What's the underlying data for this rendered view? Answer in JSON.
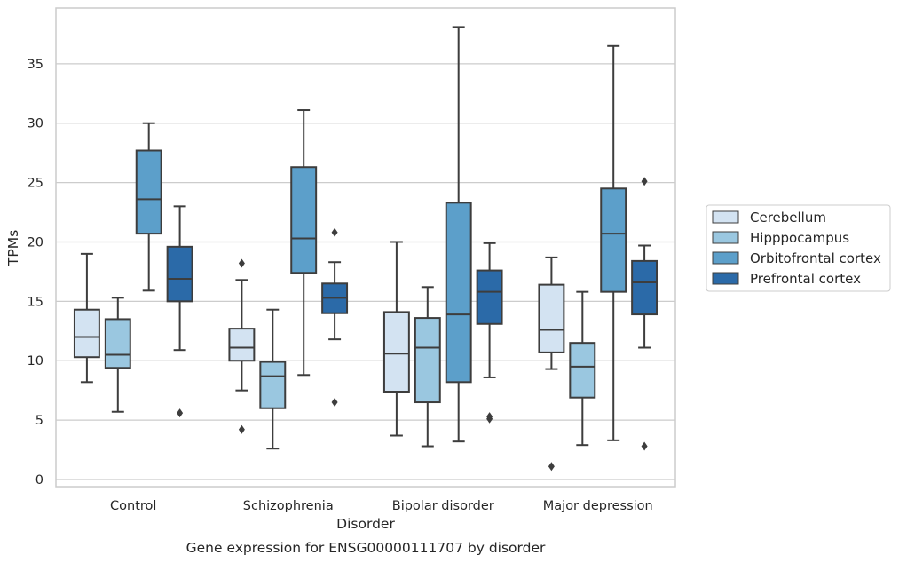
{
  "caption": "Gene expression for ENSG00000111707 by disorder",
  "chart_data": {
    "type": "box",
    "xlabel": "Disorder",
    "ylabel": "TPMs",
    "categories": [
      "Control",
      "Schizophrenia",
      "Bipolar disorder",
      "Major depression"
    ],
    "ylim": [
      -0.6,
      39.7
    ],
    "yticks": [
      0,
      5,
      10,
      15,
      20,
      25,
      30,
      35
    ],
    "grid": "horizontal",
    "legend_position": "right",
    "series": [
      {
        "name": "Cerebellum",
        "color": "#d3e3f2",
        "boxes": [
          {
            "whislo": 8.2,
            "q1": 10.3,
            "med": 12.0,
            "q3": 14.3,
            "whishi": 19.0,
            "fliers": []
          },
          {
            "whislo": 7.5,
            "q1": 10.0,
            "med": 11.1,
            "q3": 12.7,
            "whishi": 16.8,
            "fliers": [
              18.2,
              4.2
            ]
          },
          {
            "whislo": 3.7,
            "q1": 7.4,
            "med": 10.6,
            "q3": 14.1,
            "whishi": 20.0,
            "fliers": []
          },
          {
            "whislo": 9.3,
            "q1": 10.7,
            "med": 12.6,
            "q3": 16.4,
            "whishi": 18.7,
            "fliers": [
              1.1
            ]
          }
        ]
      },
      {
        "name": "Hipppocampus",
        "color": "#9ac7e0",
        "boxes": [
          {
            "whislo": 5.7,
            "q1": 9.4,
            "med": 10.5,
            "q3": 13.5,
            "whishi": 15.3,
            "fliers": []
          },
          {
            "whislo": 2.6,
            "q1": 6.0,
            "med": 8.7,
            "q3": 9.9,
            "whishi": 14.3,
            "fliers": []
          },
          {
            "whislo": 2.8,
            "q1": 6.5,
            "med": 11.1,
            "q3": 13.6,
            "whishi": 16.2,
            "fliers": []
          },
          {
            "whislo": 2.9,
            "q1": 6.9,
            "med": 9.5,
            "q3": 11.5,
            "whishi": 15.8,
            "fliers": []
          }
        ]
      },
      {
        "name": "Orbitofrontal cortex",
        "color": "#5c9fca",
        "boxes": [
          {
            "whislo": 15.9,
            "q1": 20.7,
            "med": 23.6,
            "q3": 27.7,
            "whishi": 30.0,
            "fliers": []
          },
          {
            "whislo": 8.8,
            "q1": 17.4,
            "med": 20.3,
            "q3": 26.3,
            "whishi": 31.1,
            "fliers": []
          },
          {
            "whislo": 3.2,
            "q1": 8.2,
            "med": 13.9,
            "q3": 23.3,
            "whishi": 38.1,
            "fliers": []
          },
          {
            "whislo": 3.3,
            "q1": 15.8,
            "med": 20.7,
            "q3": 24.5,
            "whishi": 36.5,
            "fliers": []
          }
        ]
      },
      {
        "name": "Prefrontal cortex",
        "color": "#2b6aa8",
        "boxes": [
          {
            "whislo": 10.9,
            "q1": 15.0,
            "med": 16.9,
            "q3": 19.6,
            "whishi": 23.0,
            "fliers": [
              5.6
            ]
          },
          {
            "whislo": 11.8,
            "q1": 14.0,
            "med": 15.3,
            "q3": 16.5,
            "whishi": 18.3,
            "fliers": [
              20.8,
              6.5
            ]
          },
          {
            "whislo": 8.6,
            "q1": 13.1,
            "med": 15.8,
            "q3": 17.6,
            "whishi": 19.9,
            "fliers": [
              5.3,
              5.1
            ]
          },
          {
            "whislo": 11.1,
            "q1": 13.9,
            "med": 16.6,
            "q3": 18.4,
            "whishi": 19.7,
            "fliers": [
              25.1,
              2.8
            ]
          }
        ]
      }
    ]
  }
}
